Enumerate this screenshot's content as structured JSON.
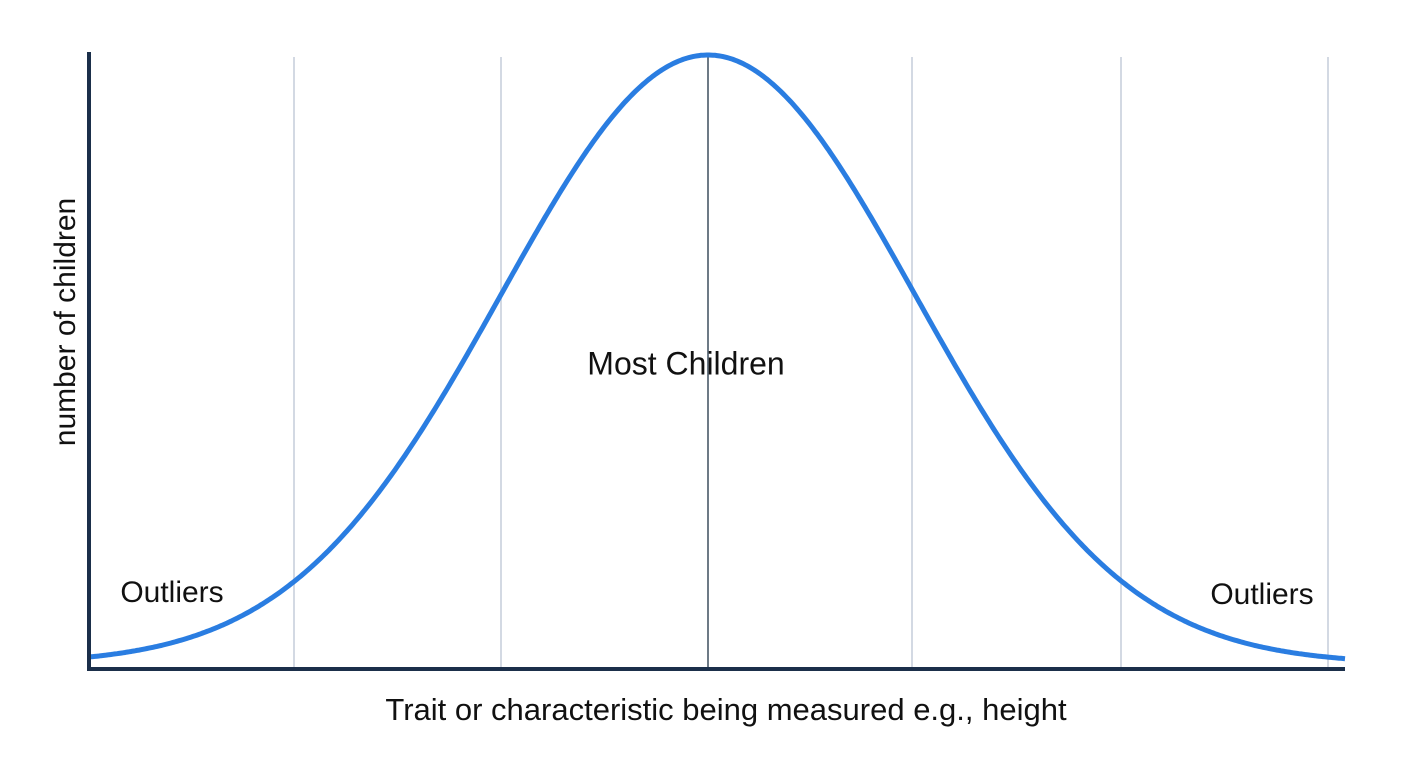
{
  "y_axis_label": "number of children",
  "x_axis_label": "Trait or characteristic being measured e.g., height",
  "annotations": {
    "center": "Most Children",
    "left": "Outliers",
    "right": "Outliers"
  }
}
